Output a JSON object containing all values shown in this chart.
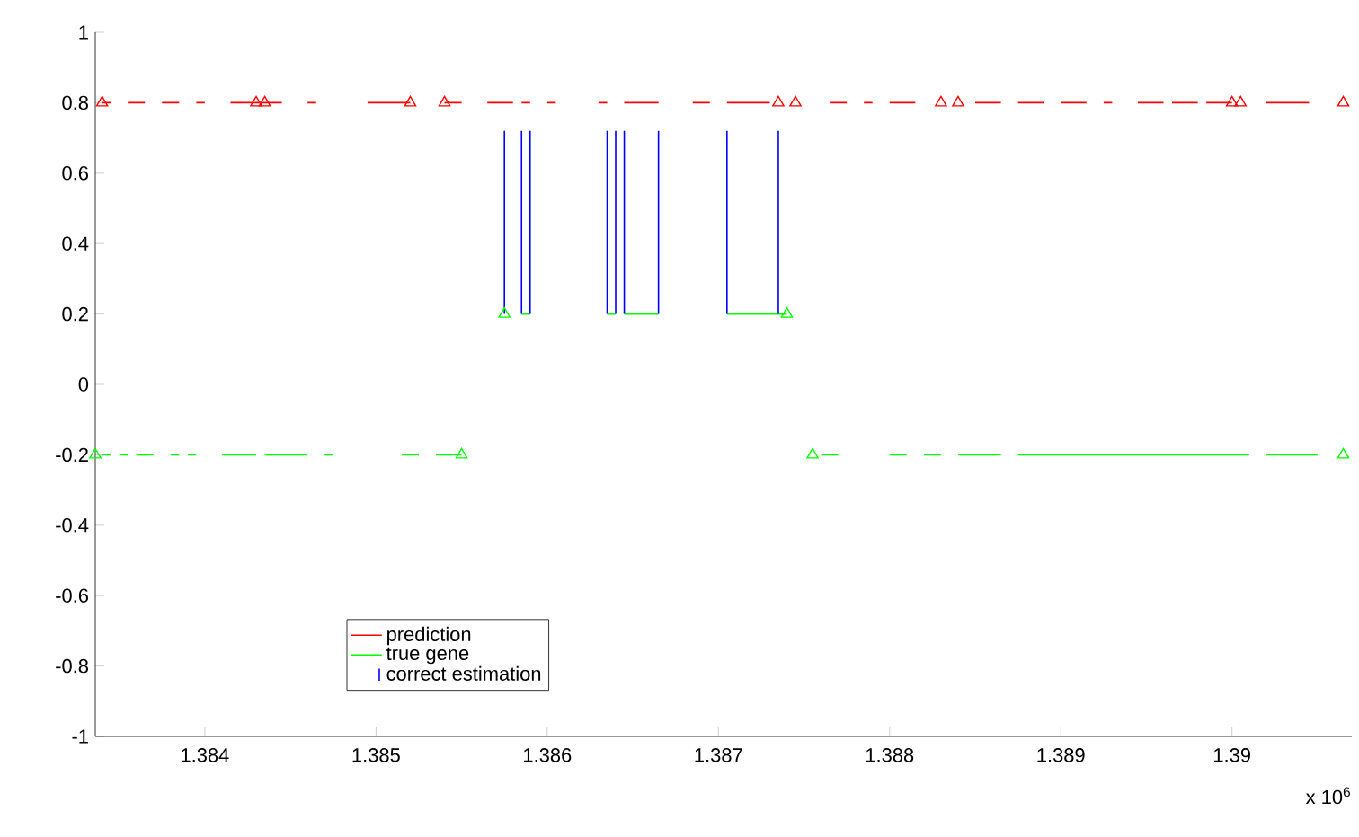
{
  "chart_data": {
    "type": "line",
    "xlim": [
      1.38336,
      1.3907
    ],
    "ylim": [
      -1,
      1
    ],
    "xticks": [
      1.384,
      1.385,
      1.386,
      1.387,
      1.388,
      1.389,
      1.39
    ],
    "yticks": [
      -1,
      -0.8,
      -0.6,
      -0.4,
      -0.2,
      0,
      0.2,
      0.4,
      0.6,
      0.8,
      1
    ],
    "annotations": [
      "x 10$^{6}$"
    ],
    "legend": "bottom left",
    "grid": false,
    "series": [
      {
        "name": "prediction",
        "color": "#ff0000",
        "x": [
          1.3834,
          1.38345,
          null,
          1.38355,
          1.38365,
          null,
          1.38375,
          1.38385,
          null,
          1.38395,
          1.384,
          null,
          1.38415,
          1.38445,
          null,
          1.3846,
          1.38465,
          null,
          1.38495,
          1.3852,
          null,
          1.3854,
          1.3855,
          null,
          1.38565,
          1.3858,
          null,
          1.38585,
          1.3859,
          null,
          1.386,
          1.38605,
          null,
          1.3863,
          1.38635,
          null,
          1.38645,
          1.38665,
          null,
          1.38685,
          1.38695,
          null,
          1.38705,
          1.3873,
          null,
          1.38765,
          1.38775,
          null,
          1.38785,
          1.3879,
          null,
          1.388,
          1.38815,
          null,
          1.3885,
          1.38865,
          null,
          1.38875,
          1.3889,
          null,
          1.389,
          1.38915,
          null,
          1.38925,
          1.3893,
          null,
          1.38945,
          1.3896,
          null,
          1.38965,
          1.3898,
          null,
          1.38985,
          1.39,
          null,
          1.3902,
          1.39045
        ],
        "values": [
          0.8,
          0.8,
          null,
          0.8,
          0.8,
          null,
          0.8,
          0.8,
          null,
          0.8,
          0.8,
          null,
          0.8,
          0.8,
          null,
          0.8,
          0.8,
          null,
          0.8,
          0.8,
          null,
          0.8,
          0.8,
          null,
          0.8,
          0.8,
          null,
          0.8,
          0.8,
          null,
          0.8,
          0.8,
          null,
          0.8,
          0.8,
          null,
          0.8,
          0.8,
          null,
          0.8,
          0.8,
          null,
          0.8,
          0.8,
          null,
          0.8,
          0.8,
          null,
          0.8,
          0.8,
          null,
          0.8,
          0.8,
          null,
          0.8,
          0.8,
          null,
          0.8,
          0.8,
          null,
          0.8,
          0.8,
          null,
          0.8,
          0.8,
          null,
          0.8,
          0.8,
          null,
          0.8,
          0.8,
          null,
          0.8,
          0.8,
          null,
          0.8,
          0.8
        ]
      },
      {
        "name": "true gene",
        "color": "#00ff00",
        "x": [
          1.3834,
          1.38345,
          null,
          1.3835,
          1.38355,
          null,
          1.3836,
          1.3837,
          null,
          1.3838,
          1.38385,
          null,
          1.3839,
          1.38395,
          null,
          1.3841,
          1.3843,
          null,
          1.38435,
          1.3846,
          null,
          1.3847,
          1.38475,
          null,
          1.38515,
          1.38525,
          null,
          1.38535,
          1.3855,
          null,
          1.3876,
          1.3877,
          null,
          1.388,
          1.3881,
          null,
          1.3882,
          1.3883,
          null,
          1.3884,
          1.38865,
          null,
          1.38875,
          1.3901,
          null,
          1.3902,
          1.3905,
          null,
          1.38585,
          1.3859,
          null,
          1.38635,
          1.3864,
          null,
          1.38645,
          1.38665,
          null,
          1.38705,
          1.3874
        ],
        "values": [
          -0.2,
          -0.2,
          null,
          -0.2,
          -0.2,
          null,
          -0.2,
          -0.2,
          null,
          -0.2,
          -0.2,
          null,
          -0.2,
          -0.2,
          null,
          -0.2,
          -0.2,
          null,
          -0.2,
          -0.2,
          null,
          -0.2,
          -0.2,
          null,
          -0.2,
          -0.2,
          null,
          -0.2,
          -0.2,
          null,
          -0.2,
          -0.2,
          null,
          -0.2,
          -0.2,
          null,
          -0.2,
          -0.2,
          null,
          -0.2,
          -0.2,
          null,
          -0.2,
          -0.2,
          null,
          -0.2,
          -0.2,
          null,
          0.2,
          0.2,
          null,
          0.2,
          0.2,
          null,
          0.2,
          0.2,
          null,
          0.2,
          0.2
        ]
      },
      {
        "name": "correct estimation",
        "color": "#0000ff",
        "x": [
          1.38575,
          1.38575,
          null,
          1.38585,
          1.38585,
          null,
          1.3859,
          1.3859,
          null,
          1.38635,
          1.38635,
          null,
          1.3864,
          1.3864,
          null,
          1.38645,
          1.38645,
          null,
          1.38665,
          1.38665,
          null,
          1.38705,
          1.38705,
          null,
          1.38735,
          1.38735
        ],
        "values": [
          0.2,
          0.72,
          null,
          0.2,
          0.72,
          null,
          0.2,
          0.72,
          null,
          0.2,
          0.72,
          null,
          0.2,
          0.72,
          null,
          0.2,
          0.72,
          null,
          0.2,
          0.72,
          null,
          0.2,
          0.72,
          null,
          0.2,
          0.72
        ]
      },
      {
        "type": "scatter",
        "marker": "triangle",
        "color": "#ff0000",
        "x": [
          1.3834,
          1.3843,
          1.38435,
          1.3852,
          1.3854,
          1.38735,
          1.38745,
          1.3883,
          1.3884,
          1.39,
          1.39005,
          1.39065
        ],
        "values": [
          0.8,
          0.8,
          0.8,
          0.8,
          0.8,
          0.8,
          0.8,
          0.8,
          0.8,
          0.8,
          0.8,
          0.8
        ]
      },
      {
        "type": "scatter",
        "marker": "triangle",
        "color": "#00ff00",
        "x": [
          1.38336,
          1.3855,
          1.38755,
          1.39065,
          1.38575,
          1.3874
        ],
        "values": [
          -0.2,
          -0.2,
          -0.2,
          -0.2,
          0.2,
          0.2
        ]
      }
    ]
  }
}
